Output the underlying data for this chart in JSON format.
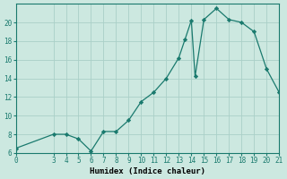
{
  "x_vals": [
    0,
    3,
    4,
    5,
    6,
    7,
    8,
    9,
    10,
    11,
    12,
    13,
    13.5,
    14,
    14.3,
    15,
    16,
    17,
    18,
    19,
    20,
    21
  ],
  "y_vals": [
    6.5,
    8.0,
    8.0,
    7.5,
    6.2,
    8.3,
    8.3,
    9.5,
    11.5,
    12.5,
    14.0,
    16.2,
    18.2,
    20.2,
    14.2,
    20.3,
    21.5,
    20.3,
    20.0,
    19.0,
    15.0,
    12.5
  ],
  "xlabel": "Humidex (Indice chaleur)",
  "xlim": [
    0,
    21
  ],
  "ylim": [
    6,
    22
  ],
  "yticks": [
    6,
    8,
    10,
    12,
    14,
    16,
    18,
    20
  ],
  "xticks": [
    0,
    3,
    4,
    5,
    6,
    7,
    8,
    9,
    10,
    11,
    12,
    13,
    14,
    15,
    16,
    17,
    18,
    19,
    20,
    21
  ],
  "line_color": "#1a7a6e",
  "bg_color": "#cce8e0",
  "grid_color": "#aad0c8",
  "tick_fontsize": 5.5,
  "xlabel_fontsize": 6.5
}
